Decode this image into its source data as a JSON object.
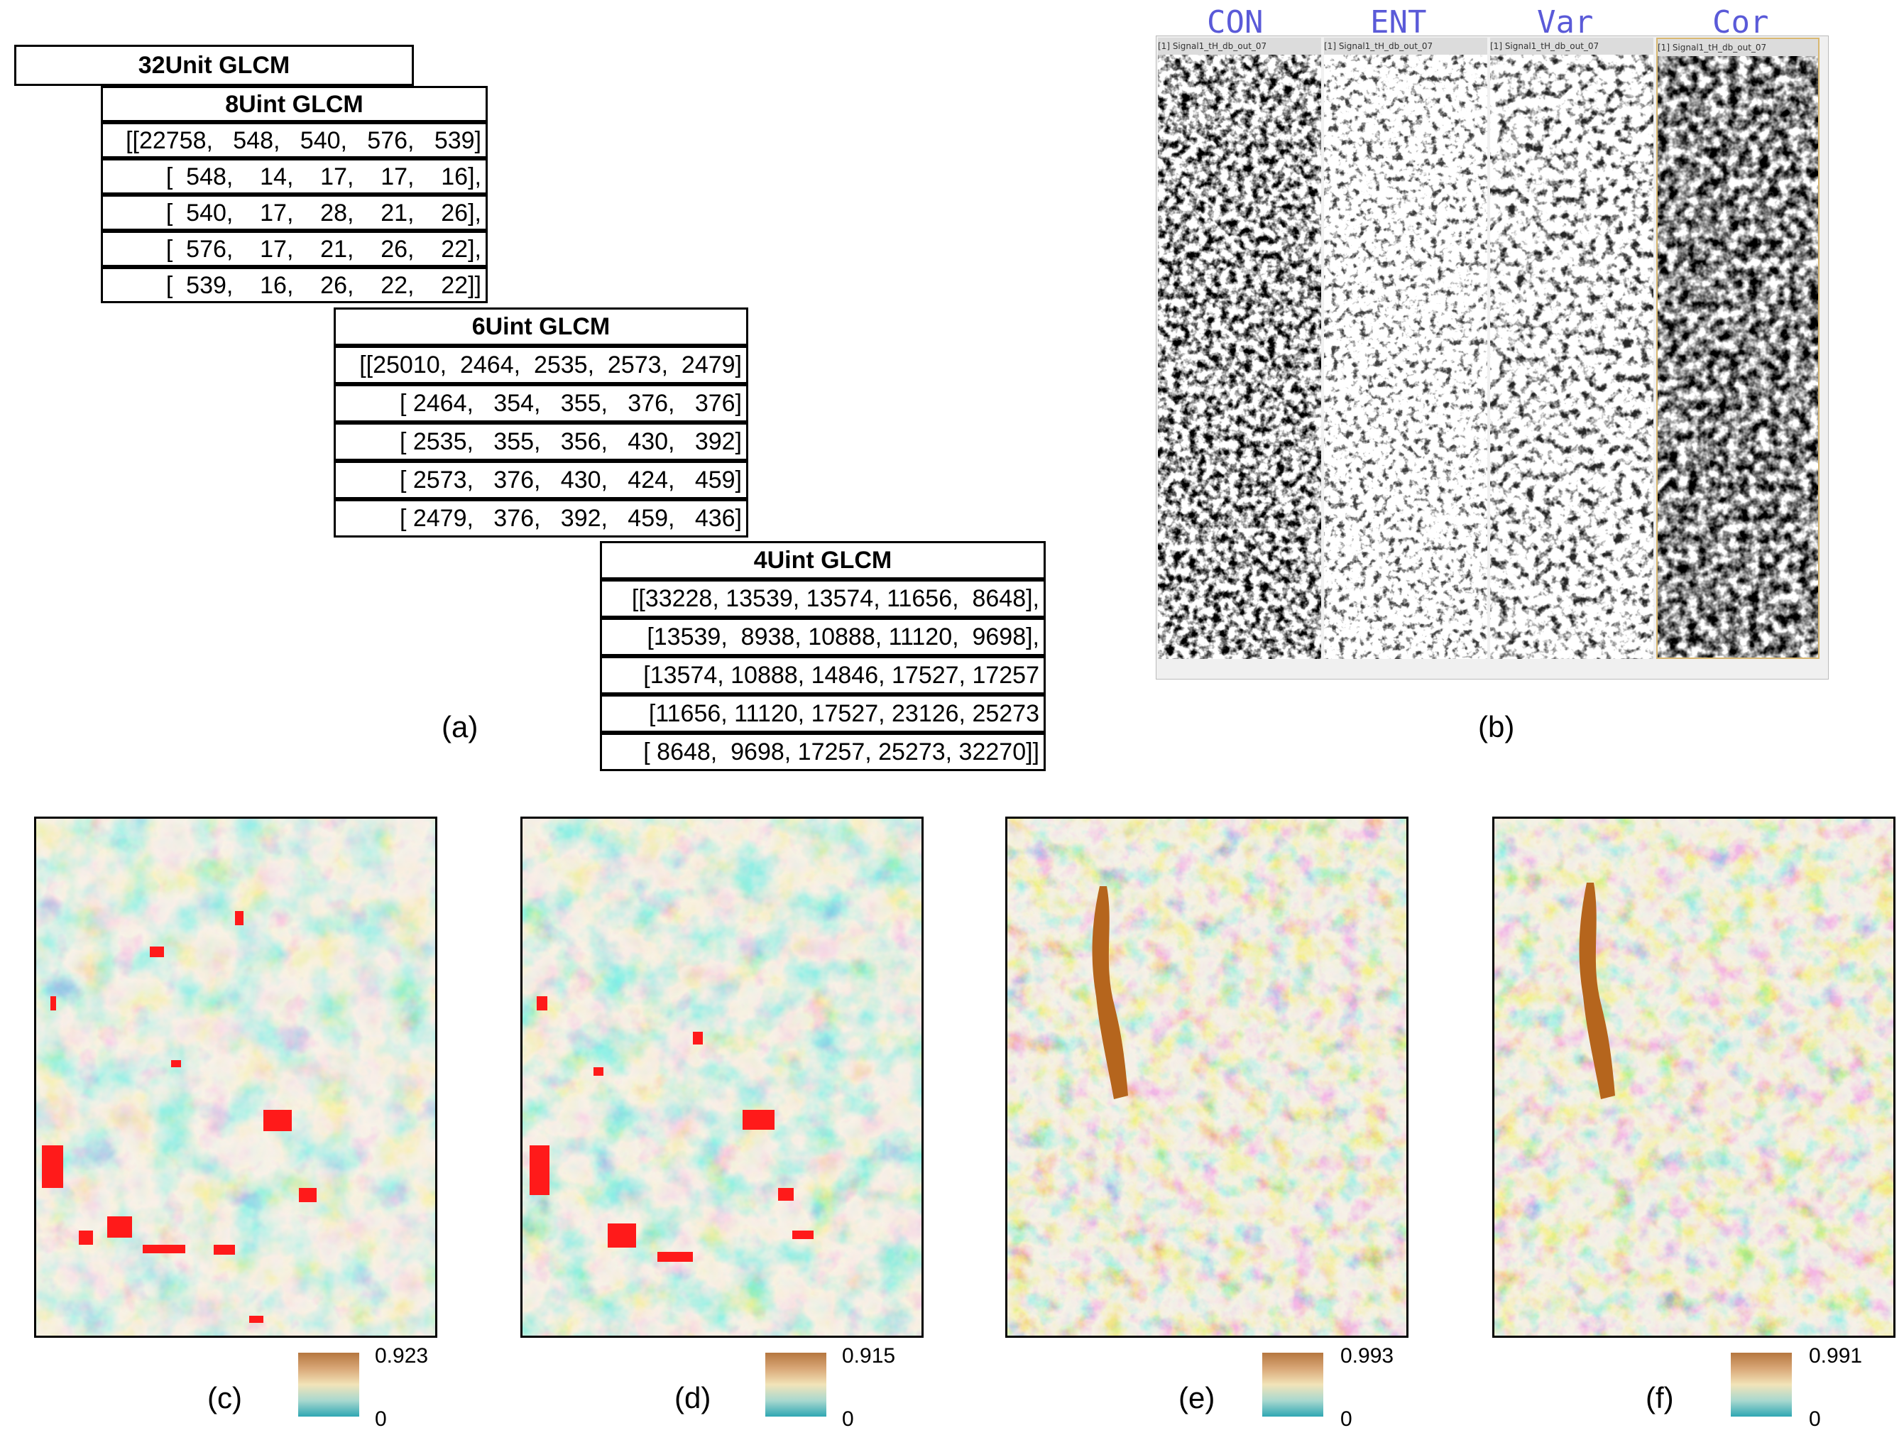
{
  "panel_a": {
    "label": "(a)",
    "title_32": "32Unit GLCM",
    "t8": {
      "title": "8Uint GLCM",
      "rows": [
        "[[22758,   548,   540,   576,   539]",
        "[  548,    14,    17,    17,    16],",
        "[  540,    17,    28,    21,    26],",
        "[  576,    17,    21,    26,    22],",
        "[  539,    16,    26,    22,    22]]"
      ]
    },
    "t6": {
      "title": "6Uint GLCM",
      "rows": [
        "[[25010,  2464,  2535,  2573,  2479]",
        "[ 2464,   354,   355,   376,   376]",
        "[ 2535,   355,   356,   430,   392]",
        "[ 2573,   376,   430,   424,   459]",
        "[ 2479,   376,   392,   459,   436]"
      ]
    },
    "t4": {
      "title": "4Uint GLCM",
      "rows": [
        "[[33228, 13539, 13574, 11656,  8648],",
        "[13539,  8938, 10888, 11120,  9698],",
        "[13574, 10888, 14846, 17527, 17257",
        "[11656, 11120, 17527, 23126, 25273",
        "[ 8648,  9698, 17257, 25273, 32270]]"
      ]
    }
  },
  "panel_b": {
    "label": "(b)",
    "headers": [
      "CON",
      "ENT",
      "Var",
      "Cor"
    ],
    "window_title": "[1] Signal1_tH_db_out_07"
  },
  "maps": [
    {
      "label": "(c)",
      "max": "0.923",
      "min": "0"
    },
    {
      "label": "(d)",
      "max": "0.915",
      "min": "0"
    },
    {
      "label": "(e)",
      "max": "0.993",
      "min": "0"
    },
    {
      "label": "(f)",
      "max": "0.991",
      "min": "0"
    }
  ],
  "colors": {
    "high": "#b5763f",
    "mid": "#f2e4b8",
    "low": "#2fa7b3",
    "highlight": "#ff1a1a",
    "b_header": "#5a5ad8"
  }
}
